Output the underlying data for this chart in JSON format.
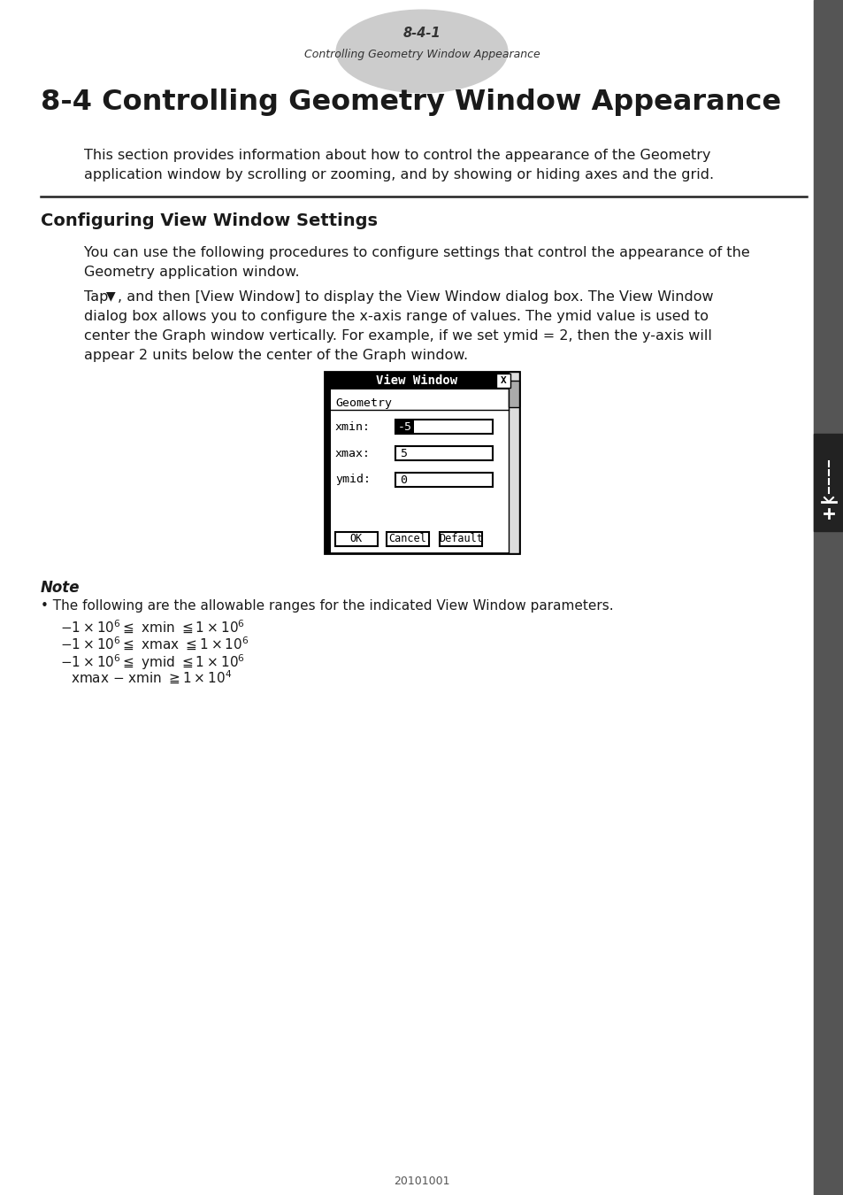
{
  "page_label": "8-4-1",
  "page_sublabel": "Controlling Geometry Window Appearance",
  "main_title": "8-4 Controlling Geometry Window Appearance",
  "intro_text_1": "This section provides information about how to control the appearance of the Geometry",
  "intro_text_2": "application window by scrolling or zooming, and by showing or hiding axes and the grid.",
  "section_title": "Configuring View Window Settings",
  "para1_1": "You can use the following procedures to configure settings that control the appearance of the",
  "para1_2": "Geometry application window.",
  "para2_1": ", and then [View Window] to display the View Window dialog box. The View Window",
  "para2_2": "dialog box allows you to configure the x-axis range of values. The ymid value is used to",
  "para2_3": "center the Graph window vertically. For example, if we set ymid = 2, then the y-axis will",
  "para2_4": "appear 2 units below the center of the Graph window.",
  "dialog_title": "View Window",
  "dialog_subtitle": "Geometry",
  "dialog_fields": [
    "xmin:",
    "xmax:",
    "ymid:"
  ],
  "dialog_values": [
    "-5",
    "5",
    "0"
  ],
  "dialog_buttons": [
    "OK",
    "Cancel",
    "Default"
  ],
  "note_title": "Note",
  "note_bullet": "• The following are the allowable ranges for the indicated View Window parameters.",
  "footer": "20101001",
  "bg_color": "#ffffff",
  "text_color": "#1a1a1a",
  "ellipse_color": "#cccccc",
  "sidebar_bg": "#666666",
  "sidebar_icon_bg": "#333333"
}
